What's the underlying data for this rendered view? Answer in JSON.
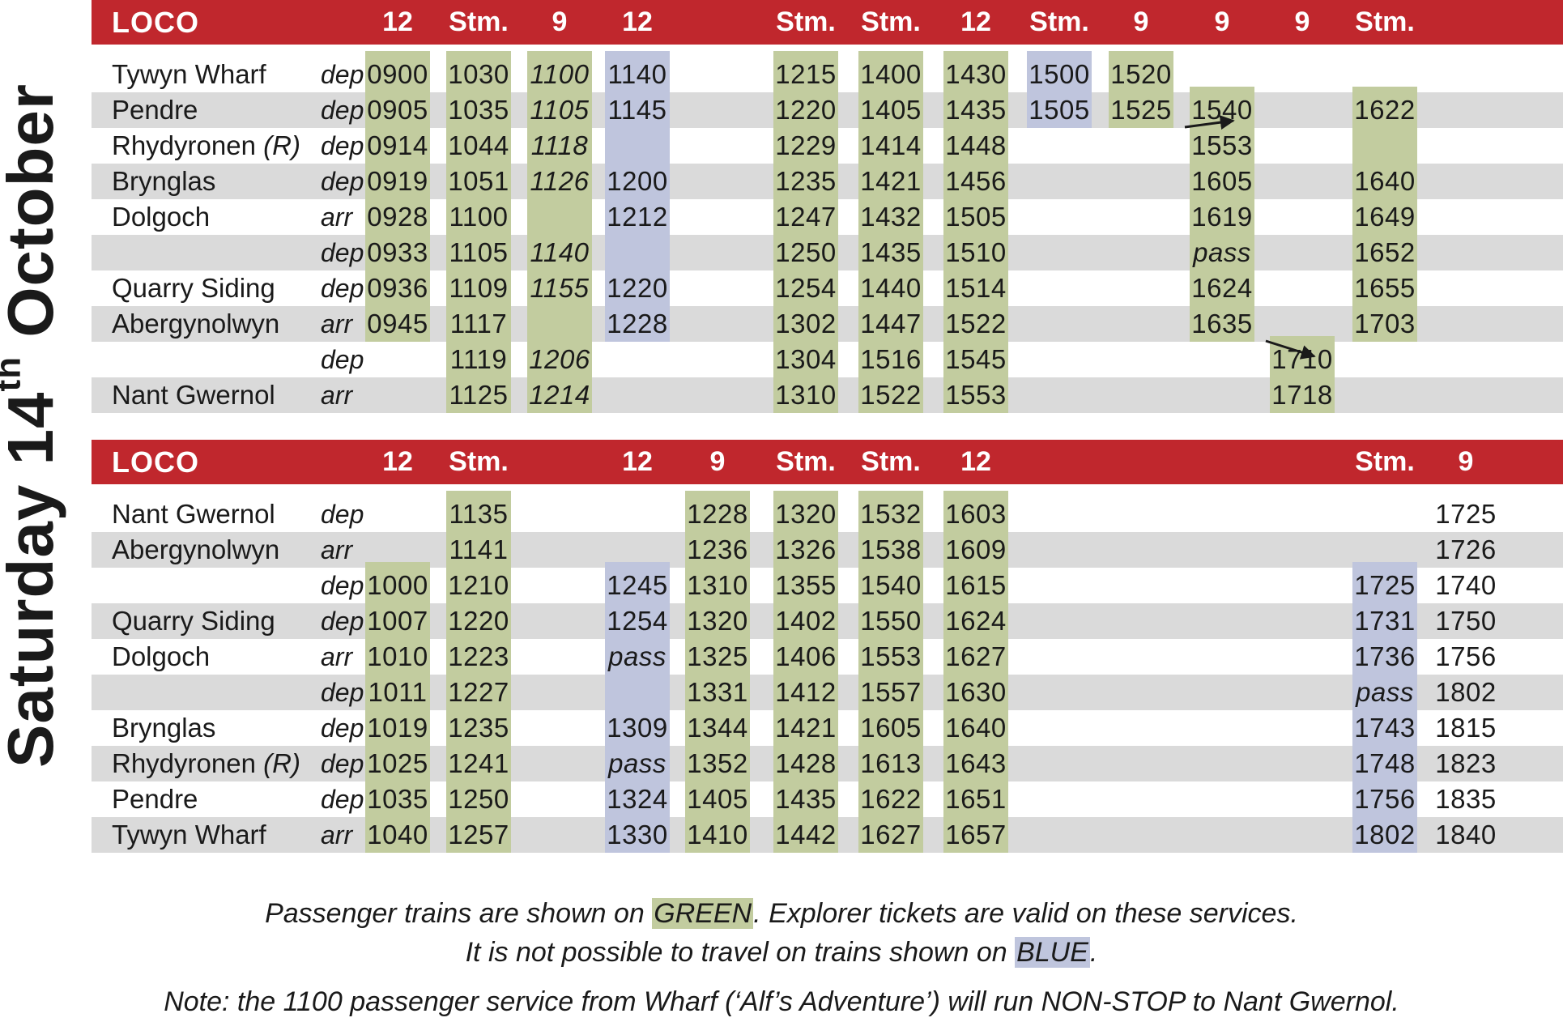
{
  "date_text": "Saturday 14",
  "date_sup": "th",
  "date_month": "October",
  "colors": {
    "header": "#c0272d",
    "stripe": "#dadada",
    "green": "#c2cc9f",
    "blue": "#bfc5dd"
  },
  "up": {
    "header_label": "LOCO",
    "locos": [
      "12",
      "Stm.",
      "9",
      "12",
      "",
      "Stm.",
      "Stm.",
      "12",
      "Stm.",
      "9",
      "9",
      "9",
      "Stm."
    ],
    "col_colors": [
      "green",
      "green",
      "green",
      "blue",
      "none",
      "green",
      "green",
      "green",
      "blue",
      "green",
      "green",
      "green",
      "green"
    ],
    "rows": [
      {
        "station": "Tywyn Wharf",
        "suffix": "",
        "ad": "dep",
        "times": [
          "0900",
          "1030",
          "1100",
          "1140",
          "",
          "1215",
          "1400",
          "1430",
          "1500",
          "1520",
          "",
          "",
          ""
        ]
      },
      {
        "station": "Pendre",
        "suffix": "",
        "ad": "dep",
        "times": [
          "0905",
          "1035",
          "1105",
          "1145",
          "",
          "1220",
          "1405",
          "1435",
          "1505",
          "1525",
          "1540",
          "",
          "1622"
        ]
      },
      {
        "station": "Rhydyronen",
        "suffix": "(R)",
        "ad": "dep",
        "times": [
          "0914",
          "1044",
          "1118",
          "",
          "",
          "1229",
          "1414",
          "1448",
          "",
          "",
          "1553",
          "",
          ""
        ]
      },
      {
        "station": "Brynglas",
        "suffix": "",
        "ad": "dep",
        "times": [
          "0919",
          "1051",
          "1126",
          "1200",
          "",
          "1235",
          "1421",
          "1456",
          "",
          "",
          "1605",
          "",
          "1640"
        ]
      },
      {
        "station": "Dolgoch",
        "suffix": "",
        "ad": "arr",
        "times": [
          "0928",
          "1100",
          "",
          "1212",
          "",
          "1247",
          "1432",
          "1505",
          "",
          "",
          "1619",
          "",
          "1649"
        ]
      },
      {
        "station": "",
        "suffix": "",
        "ad": "dep",
        "times": [
          "0933",
          "1105",
          "1140",
          "",
          "",
          "1250",
          "1435",
          "1510",
          "",
          "",
          "pass",
          "",
          "1652"
        ]
      },
      {
        "station": "Quarry Siding",
        "suffix": "",
        "ad": "dep",
        "times": [
          "0936",
          "1109",
          "1155",
          "1220",
          "",
          "1254",
          "1440",
          "1514",
          "",
          "",
          "1624",
          "",
          "1655"
        ]
      },
      {
        "station": "Abergynolwyn",
        "suffix": "",
        "ad": "arr",
        "times": [
          "0945",
          "1117",
          "",
          "1228",
          "",
          "1302",
          "1447",
          "1522",
          "",
          "",
          "1635",
          "",
          "1703"
        ]
      },
      {
        "station": "",
        "suffix": "",
        "ad": "dep",
        "times": [
          "",
          "1119",
          "1206",
          "",
          "",
          "1304",
          "1516",
          "1545",
          "",
          "",
          "",
          "1710",
          ""
        ]
      },
      {
        "station": "Nant Gwernol",
        "suffix": "",
        "ad": "arr",
        "times": [
          "",
          "1125",
          "1214",
          "",
          "",
          "1310",
          "1522",
          "1553",
          "",
          "",
          "",
          "1718",
          ""
        ]
      }
    ]
  },
  "down": {
    "header_label": "LOCO",
    "locos": [
      "12",
      "Stm.",
      "",
      "12",
      "9",
      "Stm.",
      "Stm.",
      "12",
      "",
      "",
      "",
      "",
      "Stm.",
      "9"
    ],
    "col_colors": [
      "green",
      "green",
      "none",
      "blue",
      "green",
      "green",
      "green",
      "green",
      "none",
      "none",
      "none",
      "none",
      "blue",
      "none"
    ],
    "rows": [
      {
        "station": "Nant Gwernol",
        "suffix": "",
        "ad": "dep",
        "times": [
          "",
          "1135",
          "",
          "",
          "1228",
          "1320",
          "1532",
          "1603",
          "",
          "",
          "",
          "",
          "",
          "1725"
        ]
      },
      {
        "station": "Abergynolwyn",
        "suffix": "",
        "ad": "arr",
        "times": [
          "",
          "1141",
          "",
          "",
          "1236",
          "1326",
          "1538",
          "1609",
          "",
          "",
          "",
          "",
          "",
          "1726"
        ]
      },
      {
        "station": "",
        "suffix": "",
        "ad": "dep",
        "times": [
          "1000",
          "1210",
          "",
          "1245",
          "1310",
          "1355",
          "1540",
          "1615",
          "",
          "",
          "",
          "",
          "1725",
          "1740"
        ]
      },
      {
        "station": "Quarry Siding",
        "suffix": "",
        "ad": "dep",
        "times": [
          "1007",
          "1220",
          "",
          "1254",
          "1320",
          "1402",
          "1550",
          "1624",
          "",
          "",
          "",
          "",
          "1731",
          "1750"
        ]
      },
      {
        "station": "Dolgoch",
        "suffix": "",
        "ad": "arr",
        "times": [
          "1010",
          "1223",
          "",
          "pass",
          "1325",
          "1406",
          "1553",
          "1627",
          "",
          "",
          "",
          "",
          "1736",
          "1756"
        ]
      },
      {
        "station": "",
        "suffix": "",
        "ad": "dep",
        "times": [
          "1011",
          "1227",
          "",
          "",
          "1331",
          "1412",
          "1557",
          "1630",
          "",
          "",
          "",
          "",
          "pass",
          "1802"
        ]
      },
      {
        "station": "Brynglas",
        "suffix": "",
        "ad": "dep",
        "times": [
          "1019",
          "1235",
          "",
          "1309",
          "1344",
          "1421",
          "1605",
          "1640",
          "",
          "",
          "",
          "",
          "1743",
          "1815"
        ]
      },
      {
        "station": "Rhydyronen",
        "suffix": "(R)",
        "ad": "dep",
        "times": [
          "1025",
          "1241",
          "",
          "pass",
          "1352",
          "1428",
          "1613",
          "1643",
          "",
          "",
          "",
          "",
          "1748",
          "1823"
        ]
      },
      {
        "station": "Pendre",
        "suffix": "",
        "ad": "dep",
        "times": [
          "1035",
          "1250",
          "",
          "1324",
          "1405",
          "1435",
          "1622",
          "1651",
          "",
          "",
          "",
          "",
          "1756",
          "1835"
        ]
      },
      {
        "station": "Tywyn Wharf",
        "suffix": "",
        "ad": "arr",
        "times": [
          "1040",
          "1257",
          "",
          "1330",
          "1410",
          "1442",
          "1627",
          "1657",
          "",
          "",
          "",
          "",
          "1802",
          "1840"
        ]
      }
    ]
  },
  "footnotes": {
    "line1_a": "Passenger trains are shown on ",
    "line1_green": "GREEN",
    "line1_b": ". Explorer tickets are valid on these services.",
    "line2_a": "It is not possible to travel on trains shown on ",
    "line2_blue": "BLUE",
    "line2_b": ".",
    "line3": "Note: the 1100 passenger service from Wharf (‘Alf’s Adventure’) will run NON-STOP to Nant Gwernol."
  }
}
